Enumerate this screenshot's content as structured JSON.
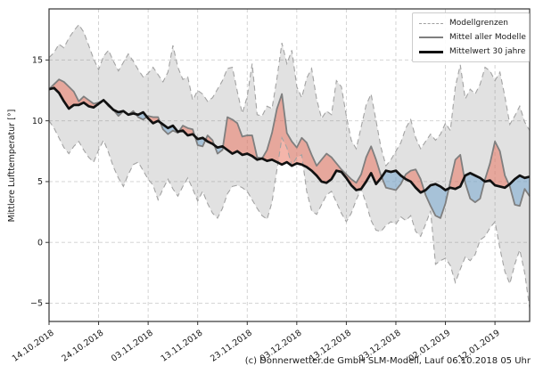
{
  "caption": "(c) Donnerwetter.de GmbH SLM-Modell, Lauf 06.10.2018 05 Uhr",
  "chart_data": {
    "type": "area",
    "title": "",
    "ylabel": "Mittlere Lufttemperatur [°]",
    "xlabel": "",
    "grid": true,
    "legend_position": "upper right",
    "legend": [
      {
        "label": "Modellgrenzen",
        "style": "dashed-gray"
      },
      {
        "label": "Mittel aller Modelle",
        "style": "solid-gray"
      },
      {
        "label": "Mittelwert 30 jahre",
        "style": "solid-black-thick"
      }
    ],
    "x_start_date": "14.10.2018",
    "x_tick_labels": [
      "14.10.2018",
      "24.10.2018",
      "03.11.2018",
      "13.11.2018",
      "23.11.2018",
      "03.12.2018",
      "13.12.2018",
      "23.12.2018",
      "02.01.2019",
      "12.01.2019"
    ],
    "x_tick_days": [
      0,
      10,
      20,
      30,
      40,
      50,
      60,
      70,
      80,
      90
    ],
    "xlim_days": [
      0,
      97
    ],
    "y_ticks": [
      -5,
      0,
      5,
      10,
      15
    ],
    "y_tick_labels": [
      "−5",
      "0",
      "5",
      "10",
      "15"
    ],
    "ylim": [
      -6.5,
      19.2
    ],
    "colors": {
      "band": "rgba(120,120,120,0.22)",
      "warm_fill": "rgba(235,120,100,0.55)",
      "cold_fill": "rgba(120,170,210,0.55)",
      "bound_line": "#a3a3a3",
      "model_mean_line": "#7f7f7f",
      "mean30_line": "#111111",
      "grid_line": "#cfcfcf",
      "frame": "#333333"
    },
    "series": [
      {
        "name": "upper_model_bound",
        "values": [
          15.2,
          15.6,
          16.3,
          16.0,
          16.8,
          17.4,
          17.9,
          17.3,
          16.2,
          15.1,
          14.2,
          15.3,
          15.8,
          14.9,
          14.1,
          14.8,
          15.5,
          14.9,
          14.2,
          13.6,
          13.9,
          14.4,
          13.8,
          13.2,
          14.0,
          16.2,
          14.4,
          13.4,
          13.6,
          11.7,
          12.5,
          12.2,
          11.6,
          11.9,
          12.6,
          13.3,
          14.3,
          14.4,
          12.4,
          10.6,
          12.0,
          14.7,
          10.5,
          10.4,
          11.2,
          11.0,
          13.5,
          16.4,
          14.7,
          15.8,
          12.8,
          11.9,
          13.5,
          14.3,
          11.8,
          10.2,
          10.8,
          10.5,
          13.3,
          12.8,
          10.4,
          8.4,
          7.7,
          9.5,
          11.3,
          12.2,
          10.0,
          7.8,
          6.3,
          6.8,
          7.5,
          8.2,
          9.4,
          10.1,
          8.6,
          7.7,
          8.3,
          8.9,
          8.4,
          8.9,
          9.8,
          9.2,
          12.8,
          14.6,
          11.8,
          12.6,
          12.2,
          13.0,
          14.4,
          14.1,
          13.3,
          14.0,
          12.0,
          9.7,
          10.4,
          11.2,
          9.9,
          9.2
        ]
      },
      {
        "name": "lower_model_bound",
        "values": [
          10.0,
          9.4,
          8.6,
          7.8,
          7.3,
          7.9,
          8.3,
          7.6,
          7.0,
          6.6,
          7.6,
          8.4,
          7.4,
          6.2,
          5.3,
          4.6,
          5.6,
          6.4,
          6.6,
          5.9,
          5.2,
          4.7,
          3.5,
          4.4,
          5.2,
          4.4,
          3.8,
          4.6,
          5.3,
          4.4,
          3.4,
          4.2,
          3.2,
          2.4,
          2.0,
          2.8,
          4.0,
          4.6,
          4.7,
          4.5,
          4.2,
          3.5,
          2.8,
          2.2,
          1.9,
          3.3,
          6.0,
          8.6,
          7.8,
          6.3,
          7.0,
          7.2,
          4.2,
          2.6,
          2.3,
          3.1,
          3.9,
          4.2,
          3.3,
          2.4,
          1.7,
          2.4,
          3.5,
          4.4,
          3.2,
          1.8,
          1.0,
          0.9,
          1.4,
          1.7,
          1.5,
          2.1,
          1.8,
          2.2,
          0.9,
          0.5,
          1.5,
          2.6,
          -1.8,
          -1.5,
          -1.3,
          -1.9,
          -3.3,
          -2.2,
          -1.2,
          -1.5,
          -1.0,
          0.2,
          0.5,
          1.2,
          1.7,
          -0.5,
          -2.4,
          -3.4,
          -1.8,
          -0.6,
          -2.5,
          -5.4
        ]
      },
      {
        "name": "model_mean",
        "values": [
          12.6,
          13.0,
          13.4,
          13.2,
          12.8,
          12.4,
          11.6,
          12.0,
          11.7,
          11.4,
          11.5,
          11.7,
          11.2,
          10.9,
          10.4,
          10.8,
          10.5,
          10.8,
          10.3,
          10.1,
          10.4,
          10.3,
          10.3,
          9.3,
          8.9,
          9.2,
          9.0,
          9.6,
          9.4,
          9.3,
          8.0,
          7.9,
          8.8,
          8.4,
          7.3,
          7.6,
          10.3,
          10.1,
          9.8,
          8.7,
          8.8,
          8.8,
          7.0,
          6.9,
          7.6,
          9.0,
          11.0,
          12.2,
          9.0,
          8.3,
          7.8,
          8.6,
          8.2,
          7.2,
          6.3,
          6.8,
          7.3,
          7.0,
          6.5,
          6.0,
          5.6,
          5.2,
          4.9,
          5.6,
          7.0,
          7.9,
          6.8,
          5.5,
          4.5,
          4.4,
          4.3,
          4.8,
          5.6,
          5.9,
          6.0,
          5.2,
          3.9,
          3.0,
          2.2,
          2.0,
          3.2,
          5.0,
          6.8,
          7.2,
          4.9,
          3.6,
          3.3,
          3.6,
          5.2,
          6.5,
          8.3,
          7.5,
          5.5,
          4.6,
          3.1,
          3.0,
          4.4,
          3.8
        ]
      },
      {
        "name": "mean_30yr",
        "values": [
          12.6,
          12.7,
          12.3,
          11.6,
          11.0,
          11.3,
          11.3,
          11.5,
          11.2,
          11.1,
          11.4,
          11.7,
          11.3,
          10.9,
          10.7,
          10.8,
          10.5,
          10.6,
          10.5,
          10.7,
          10.2,
          9.8,
          10.0,
          9.7,
          9.4,
          9.6,
          9.1,
          9.2,
          8.8,
          8.9,
          8.5,
          8.6,
          8.3,
          8.1,
          7.8,
          7.9,
          7.6,
          7.3,
          7.5,
          7.2,
          7.3,
          7.1,
          6.8,
          6.9,
          6.7,
          6.8,
          6.6,
          6.4,
          6.6,
          6.3,
          6.5,
          6.4,
          6.2,
          5.9,
          5.5,
          5.0,
          4.9,
          5.2,
          5.9,
          5.8,
          5.3,
          4.7,
          4.3,
          4.4,
          5.0,
          5.7,
          4.8,
          5.3,
          5.9,
          5.8,
          5.9,
          5.5,
          5.2,
          5.0,
          4.5,
          4.1,
          4.3,
          4.7,
          4.8,
          4.6,
          4.3,
          4.5,
          4.4,
          4.6,
          5.5,
          5.7,
          5.5,
          5.3,
          5.0,
          5.1,
          4.7,
          4.6,
          4.5,
          4.8,
          5.2,
          5.5,
          5.3,
          5.4
        ]
      }
    ]
  }
}
